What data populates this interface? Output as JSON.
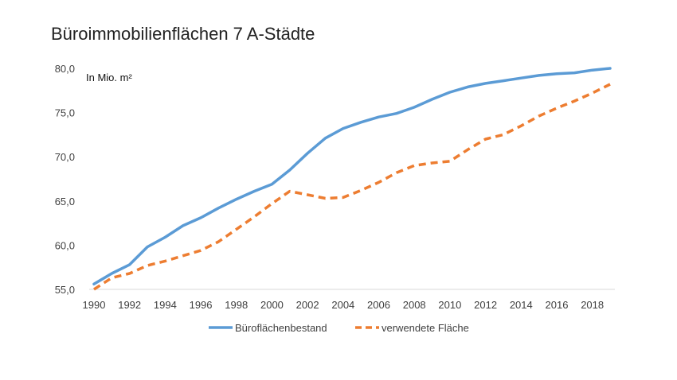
{
  "chart_data": {
    "type": "line",
    "title": "Büroimmobilienflächen 7 A-Städte",
    "unit_label": "In Mio. m²",
    "xlabel": "",
    "ylabel": "",
    "ylim": [
      55,
      80
    ],
    "xlim": [
      1990,
      2019
    ],
    "grid": false,
    "legend_position": "bottom",
    "y_ticks": [
      "55,0",
      "60,0",
      "65,0",
      "70,0",
      "75,0",
      "80,0"
    ],
    "x_ticks": [
      "1990",
      "1992",
      "1994",
      "1996",
      "1998",
      "2000",
      "2002",
      "2004",
      "2006",
      "2008",
      "2010",
      "2012",
      "2014",
      "2016",
      "2018"
    ],
    "x": [
      1990,
      1991,
      1992,
      1993,
      1994,
      1995,
      1996,
      1997,
      1998,
      1999,
      2000,
      2001,
      2002,
      2003,
      2004,
      2005,
      2006,
      2007,
      2008,
      2009,
      2010,
      2011,
      2012,
      2013,
      2014,
      2015,
      2016,
      2017,
      2018,
      2019
    ],
    "series": [
      {
        "name": "Büroflächenbestand",
        "color": "#5B9BD5",
        "style": "solid",
        "values": [
          55.6,
          56.8,
          57.8,
          59.8,
          60.9,
          62.2,
          63.1,
          64.2,
          65.2,
          66.1,
          66.9,
          68.5,
          70.4,
          72.1,
          73.2,
          73.9,
          74.5,
          74.9,
          75.6,
          76.5,
          77.3,
          77.9,
          78.3,
          78.6,
          78.9,
          79.2,
          79.4,
          79.5,
          79.8,
          80.0
        ]
      },
      {
        "name": "verwendete Fläche",
        "color": "#ED7D31",
        "style": "dashed",
        "values": [
          55.0,
          56.3,
          56.8,
          57.7,
          58.2,
          58.8,
          59.4,
          60.4,
          61.8,
          63.2,
          64.7,
          66.1,
          65.7,
          65.3,
          65.4,
          66.2,
          67.1,
          68.2,
          69.0,
          69.3,
          69.5,
          70.8,
          72.0,
          72.5,
          73.5,
          74.6,
          75.5,
          76.3,
          77.2,
          78.2
        ]
      }
    ]
  }
}
